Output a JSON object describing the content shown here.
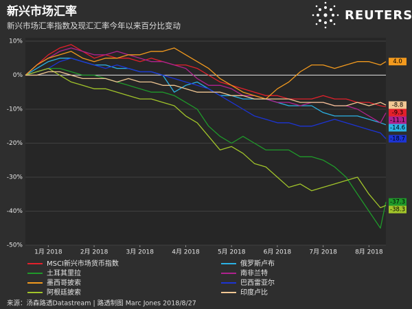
{
  "header": {
    "title": "新兴市场汇率",
    "subtitle": "新兴市场汇率指数及现汇汇率今年以来百分比变动",
    "logo": "REUTERS"
  },
  "footer": {
    "source": "来源：汤森路透Datastream | 路透制图 Marc Jones 2018/8/27"
  },
  "chart_data": {
    "type": "line",
    "x": [
      0,
      0.25,
      0.5,
      0.75,
      1,
      1.25,
      1.5,
      1.75,
      2,
      2.25,
      2.5,
      2.75,
      3,
      3.25,
      3.5,
      3.75,
      4,
      4.25,
      4.5,
      4.75,
      5,
      5.25,
      5.5,
      5.75,
      6,
      6.25,
      6.5,
      6.75,
      7,
      7.25,
      7.5,
      7.75,
      7.87
    ],
    "xlim": [
      0,
      7.87
    ],
    "xticks": [
      {
        "value": 0.5,
        "label": "1月 2018"
      },
      {
        "value": 1.5,
        "label": "2月 2018"
      },
      {
        "value": 2.5,
        "label": "3月 2018"
      },
      {
        "value": 3.5,
        "label": "4月 2018"
      },
      {
        "value": 4.5,
        "label": "5月 2018"
      },
      {
        "value": 5.5,
        "label": "6月 2018"
      },
      {
        "value": 6.5,
        "label": "7月 2018"
      },
      {
        "value": 7.5,
        "label": "8月 2018"
      }
    ],
    "ylim": [
      -50,
      11
    ],
    "yticks": [
      {
        "value": -50,
        "label": "-50%"
      },
      {
        "value": -40,
        "label": "-40%"
      },
      {
        "value": -30,
        "label": "-30%"
      },
      {
        "value": -20,
        "label": "-20%"
      },
      {
        "value": -10,
        "label": "-10%"
      },
      {
        "value": 0,
        "label": "0%"
      },
      {
        "value": 10,
        "label": "10%"
      }
    ],
    "grid": true,
    "series": [
      {
        "name": "MSCI新兴市场货币指数",
        "color": "#e3202b",
        "values": [
          0,
          3,
          6,
          8,
          9,
          7,
          5,
          6,
          5,
          5,
          4,
          5,
          4,
          3,
          3,
          2,
          0,
          -2,
          -3,
          -4,
          -5,
          -6,
          -6,
          -7,
          -7,
          -7,
          -6,
          -7,
          -7,
          -8,
          -8,
          -9,
          -9.3
        ],
        "value_labels": [
          null,
          null,
          null,
          null,
          null,
          null,
          null,
          null,
          null,
          null,
          null,
          null,
          null,
          null,
          null,
          null,
          null,
          null,
          null,
          null,
          null,
          null,
          null,
          null,
          null,
          null,
          null,
          null,
          null,
          null,
          null,
          null,
          "-9.3"
        ]
      },
      {
        "name": "俄罗斯卢布",
        "color": "#2bb3e6",
        "values": [
          0,
          2,
          4,
          5,
          5,
          4,
          3,
          3,
          2,
          2,
          1,
          1,
          0,
          -5,
          -3,
          -2,
          -4,
          -6,
          -6,
          -7,
          -7,
          -7,
          -8,
          -9,
          -9,
          -9,
          -11,
          -12,
          -12,
          -12,
          -13,
          -14,
          -14.6
        ],
        "value_labels": [
          null,
          null,
          null,
          null,
          null,
          null,
          null,
          null,
          null,
          null,
          null,
          null,
          null,
          null,
          null,
          null,
          null,
          null,
          null,
          null,
          null,
          null,
          null,
          null,
          null,
          null,
          null,
          null,
          null,
          null,
          null,
          null,
          "-14.6"
        ]
      },
      {
        "name": "土耳其里拉",
        "color": "#1f9a2a",
        "values": [
          0,
          1,
          2,
          2,
          1,
          0,
          0,
          -1,
          -2,
          -3,
          -4,
          -5,
          -5,
          -6,
          -8,
          -10,
          -15,
          -18,
          -20,
          -18,
          -20,
          -22,
          -22,
          -22,
          -24,
          -24,
          -25,
          -27,
          -30,
          -35,
          -40,
          -45,
          -37.3
        ],
        "value_labels": [
          null,
          null,
          null,
          null,
          null,
          null,
          null,
          null,
          null,
          null,
          null,
          null,
          null,
          null,
          null,
          null,
          null,
          null,
          null,
          null,
          null,
          null,
          null,
          null,
          null,
          null,
          null,
          null,
          null,
          null,
          null,
          null,
          "-37.3"
        ]
      },
      {
        "name": "南非兰特",
        "color": "#b0228f",
        "values": [
          0,
          3,
          5,
          7,
          8,
          7,
          6,
          6,
          7,
          6,
          5,
          4,
          4,
          3,
          2,
          -1,
          -3,
          -3,
          -4,
          -6,
          -6,
          -7,
          -8,
          -8,
          -9,
          -8,
          -8,
          -9,
          -9,
          -10,
          -12,
          -14,
          -11.1
        ],
        "value_labels": [
          null,
          null,
          null,
          null,
          null,
          null,
          null,
          null,
          null,
          null,
          null,
          null,
          null,
          null,
          null,
          null,
          null,
          null,
          null,
          null,
          null,
          null,
          null,
          null,
          null,
          null,
          null,
          null,
          null,
          null,
          null,
          null,
          "-11.1"
        ]
      },
      {
        "name": "墨西哥披索",
        "color": "#f39a1e",
        "values": [
          0,
          3,
          5,
          6,
          7,
          5,
          4,
          5,
          5,
          6,
          6,
          7,
          7,
          8,
          6,
          4,
          2,
          -1,
          -3,
          -5,
          -6,
          -7,
          -4,
          -2,
          1,
          3,
          3,
          2,
          3,
          4,
          4,
          3,
          4.0
        ],
        "value_labels": [
          null,
          null,
          null,
          null,
          null,
          null,
          null,
          null,
          null,
          null,
          null,
          null,
          null,
          null,
          null,
          null,
          null,
          null,
          null,
          null,
          null,
          null,
          null,
          null,
          null,
          null,
          null,
          null,
          null,
          null,
          null,
          null,
          "4.0"
        ]
      },
      {
        "name": "巴西雷亚尔",
        "color": "#1c34d6",
        "values": [
          0,
          1,
          2,
          4,
          5,
          4,
          3,
          2,
          3,
          2,
          1,
          1,
          0,
          -1,
          -2,
          -3,
          -4,
          -6,
          -8,
          -10,
          -12,
          -13,
          -14,
          -14,
          -15,
          -15,
          -14,
          -13,
          -14,
          -15,
          -16,
          -17,
          -18.7
        ],
        "value_labels": [
          null,
          null,
          null,
          null,
          null,
          null,
          null,
          null,
          null,
          null,
          null,
          null,
          null,
          null,
          null,
          null,
          null,
          null,
          null,
          null,
          null,
          null,
          null,
          null,
          null,
          null,
          null,
          null,
          null,
          null,
          null,
          null,
          "-18.7"
        ]
      },
      {
        "name": "阿根廷披索",
        "color": "#a2c52a",
        "values": [
          0,
          1,
          2,
          0,
          -2,
          -3,
          -4,
          -4,
          -5,
          -6,
          -7,
          -7,
          -8,
          -9,
          -12,
          -14,
          -18,
          -22,
          -21,
          -23,
          -26,
          -27,
          -30,
          -33,
          -32,
          -34,
          -33,
          -32,
          -31,
          -30,
          -35,
          -39,
          -38.3
        ],
        "value_labels": [
          null,
          null,
          null,
          null,
          null,
          null,
          null,
          null,
          null,
          null,
          null,
          null,
          null,
          null,
          null,
          null,
          null,
          null,
          null,
          null,
          null,
          null,
          null,
          null,
          null,
          null,
          null,
          null,
          null,
          null,
          null,
          null,
          "-38.3"
        ]
      },
      {
        "name": "印度卢比",
        "color": "#f2c894",
        "values": [
          0,
          0,
          1,
          1,
          0,
          -1,
          -1,
          -1,
          -2,
          -1,
          -2,
          -2,
          -3,
          -3,
          -4,
          -5,
          -5,
          -5,
          -6,
          -6,
          -7,
          -7,
          -7,
          -7,
          -8,
          -8,
          -8,
          -9,
          -9,
          -8,
          -9,
          -8,
          -8.8
        ],
        "value_labels": [
          null,
          null,
          null,
          null,
          null,
          null,
          null,
          null,
          null,
          null,
          null,
          null,
          null,
          null,
          null,
          null,
          null,
          null,
          null,
          null,
          null,
          null,
          null,
          null,
          null,
          null,
          null,
          null,
          null,
          null,
          null,
          null,
          "-8.8"
        ]
      }
    ]
  }
}
